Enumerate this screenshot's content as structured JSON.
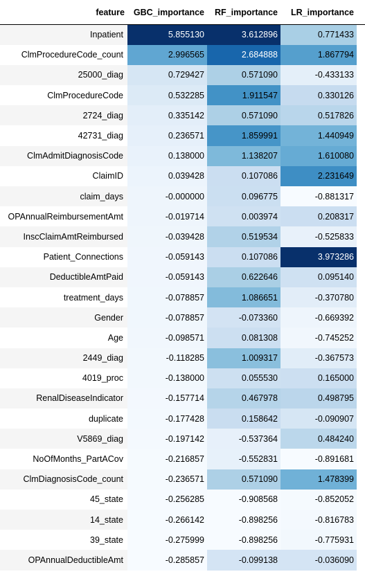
{
  "columns": [
    "feature",
    "GBC_importance",
    "RF_importance",
    "LR_importance"
  ],
  "rows": [
    [
      "Inpatient",
      "5.855130",
      "3.612896",
      "0.771433"
    ],
    [
      "ClmProcedureCode_count",
      "2.996565",
      "2.684888",
      "1.867794"
    ],
    [
      "25000_diag",
      "0.729427",
      "0.571090",
      "-0.433133"
    ],
    [
      "ClmProcedureCode",
      "0.532285",
      "1.911547",
      "0.330126"
    ],
    [
      "2724_diag",
      "0.335142",
      "0.571090",
      "0.517826"
    ],
    [
      "42731_diag",
      "0.236571",
      "1.859991",
      "1.440949"
    ],
    [
      "ClmAdmitDiagnosisCode",
      "0.138000",
      "1.138207",
      "1.610080"
    ],
    [
      "ClaimID",
      "0.039428",
      "0.107086",
      "2.231649"
    ],
    [
      "claim_days",
      "-0.000000",
      "0.096775",
      "-0.881317"
    ],
    [
      "OPAnnualReimbursementAmt",
      "-0.019714",
      "0.003974",
      "0.208317"
    ],
    [
      "InscClaimAmtReimbursed",
      "-0.039428",
      "0.519534",
      "-0.525833"
    ],
    [
      "Patient_Connections",
      "-0.059143",
      "0.107086",
      "3.973286"
    ],
    [
      "DeductibleAmtPaid",
      "-0.059143",
      "0.622646",
      "0.095140"
    ],
    [
      "treatment_days",
      "-0.078857",
      "1.086651",
      "-0.370780"
    ],
    [
      "Gender",
      "-0.078857",
      "-0.073360",
      "-0.669392"
    ],
    [
      "Age",
      "-0.098571",
      "0.081308",
      "-0.745252"
    ],
    [
      "2449_diag",
      "-0.118285",
      "1.009317",
      "-0.367573"
    ],
    [
      "4019_proc",
      "-0.138000",
      "0.055530",
      "0.165000"
    ],
    [
      "RenalDiseaseIndicator",
      "-0.157714",
      "0.467978",
      "0.498795"
    ],
    [
      "duplicate",
      "-0.177428",
      "0.158642",
      "-0.090907"
    ],
    [
      "V5869_diag",
      "-0.197142",
      "-0.537364",
      "0.484240"
    ],
    [
      "NoOfMonths_PartACov",
      "-0.216857",
      "-0.552831",
      "-0.891681"
    ],
    [
      "ClmDiagnosisCode_count",
      "-0.236571",
      "0.571090",
      "1.478399"
    ],
    [
      "45_state",
      "-0.256285",
      "-0.908568",
      "-0.852052"
    ],
    [
      "14_state",
      "-0.266142",
      "-0.898256",
      "-0.816783"
    ],
    [
      "39_state",
      "-0.275999",
      "-0.898256",
      "-0.775931"
    ],
    [
      "OPAnnualDeductibleAmt",
      "-0.285857",
      "-0.099138",
      "-0.036090"
    ]
  ],
  "colors": {
    "gradient_low": "#f7fbff",
    "gradient_high": "#08306b",
    "text_dark": "#000000",
    "text_light": "#ffffff"
  }
}
